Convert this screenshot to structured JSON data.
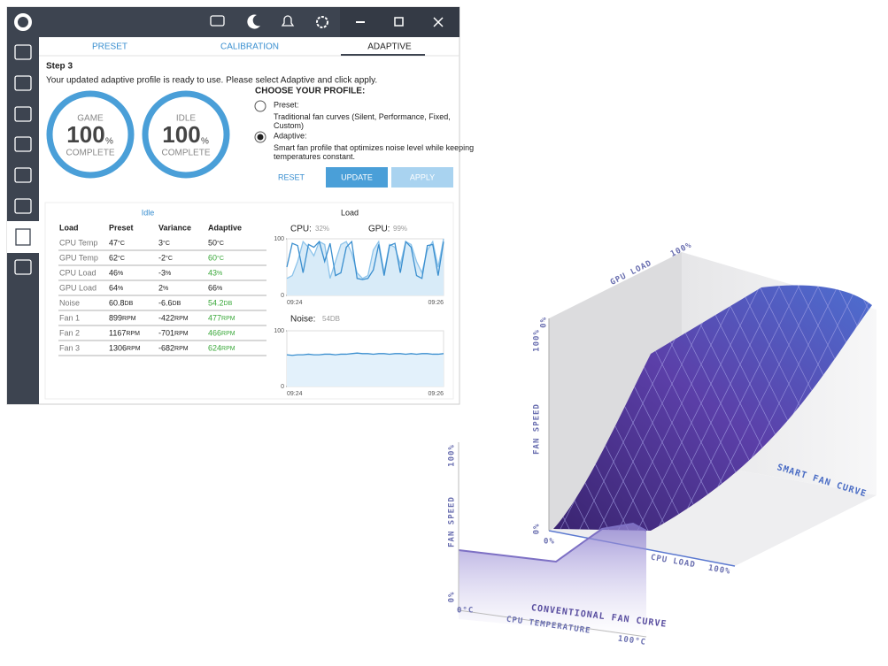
{
  "app": {
    "tabs": [
      "PRESET",
      "CALIBRATION",
      "ADAPTIVE"
    ],
    "step": "Step 3",
    "message": "Your updated adaptive profile is ready to use. Please select Adaptive and click apply.",
    "rings": [
      {
        "label": "GAME",
        "value": "100",
        "unit": "%",
        "status": "COMPLETE"
      },
      {
        "label": "IDLE",
        "value": "100",
        "unit": "%",
        "status": "COMPLETE"
      }
    ],
    "profile": {
      "heading": "CHOOSE YOUR PROFILE:",
      "options": [
        {
          "name": "Preset:",
          "description": "Traditional fan curves (Silent, Performance, Fixed, Custom)",
          "selected": false
        },
        {
          "name": "Adaptive:",
          "description": "Smart fan profile that optimizes noise level while keeping temperatures constant.",
          "selected": true
        }
      ],
      "buttons": [
        "RESET",
        "UPDATE",
        "APPLY"
      ]
    },
    "idle_heading": "Idle",
    "load_heading": "Load",
    "table": {
      "header": [
        "Load",
        "Preset",
        "Variance",
        "Adaptive"
      ],
      "rows": [
        {
          "label": "CPU Temp",
          "cells": [
            {
              "num": "47",
              "unit": "°C"
            },
            {
              "num": "3",
              "unit": "°C"
            },
            {
              "num": "50",
              "unit": "°C"
            }
          ],
          "adaptive_highlight": false
        },
        {
          "label": "GPU Temp",
          "cells": [
            {
              "num": "62",
              "unit": "°C"
            },
            {
              "num": "-2",
              "unit": "°C"
            },
            {
              "num": "60",
              "unit": "°C"
            }
          ],
          "adaptive_highlight": true
        },
        {
          "label": "CPU Load",
          "cells": [
            {
              "num": "46",
              "unit": "%"
            },
            {
              "num": "-3",
              "unit": "%"
            },
            {
              "num": "43",
              "unit": "%"
            }
          ],
          "adaptive_highlight": true
        },
        {
          "label": "GPU Load",
          "cells": [
            {
              "num": "64",
              "unit": "%"
            },
            {
              "num": "2",
              "unit": "%"
            },
            {
              "num": "66",
              "unit": "%"
            }
          ],
          "adaptive_highlight": false
        },
        {
          "label": "Noise",
          "cells": [
            {
              "num": "60.8",
              "unit": "DB"
            },
            {
              "num": "-6.6",
              "unit": "DB"
            },
            {
              "num": "54.2",
              "unit": "DB"
            }
          ],
          "adaptive_highlight": true
        },
        {
          "label": "Fan 1",
          "cells": [
            {
              "num": "899",
              "unit": "RPM"
            },
            {
              "num": "-422",
              "unit": "RPM"
            },
            {
              "num": "477",
              "unit": "RPM"
            }
          ],
          "adaptive_highlight": true
        },
        {
          "label": "Fan 2",
          "cells": [
            {
              "num": "1167",
              "unit": "RPM"
            },
            {
              "num": "-701",
              "unit": "RPM"
            },
            {
              "num": "466",
              "unit": "RPM"
            }
          ],
          "adaptive_highlight": true
        },
        {
          "label": "Fan 3",
          "cells": [
            {
              "num": "1306",
              "unit": "RPM"
            },
            {
              "num": "-682",
              "unit": "RPM"
            },
            {
              "num": "624",
              "unit": "RPM"
            }
          ],
          "adaptive_highlight": true
        }
      ]
    },
    "usage_chart": {
      "cpu_label": "CPU:",
      "cpu_value": "32%",
      "gpu_label": "GPU:",
      "gpu_value": "99%",
      "ylim": [
        0,
        100
      ],
      "yticks": [
        0,
        100
      ],
      "xticks": [
        "09:24",
        "09:26"
      ],
      "cpu": [
        50,
        92,
        88,
        40,
        90,
        85,
        95,
        60,
        92,
        35,
        40,
        85,
        95,
        30,
        28,
        30,
        45,
        90,
        35,
        88,
        92,
        40,
        95,
        85,
        35,
        30,
        88,
        90,
        35,
        95
      ],
      "gpu": [
        30,
        35,
        60,
        95,
        85,
        70,
        95,
        90,
        30,
        60,
        90,
        95,
        75,
        40,
        30,
        35,
        80,
        95,
        40,
        90,
        85,
        55,
        95,
        90,
        60,
        40,
        80,
        95,
        50,
        100
      ]
    },
    "noise_chart": {
      "label": "Noise:",
      "value": "54DB",
      "ylim": [
        0,
        100
      ],
      "yticks": [
        0,
        100
      ],
      "xticks": [
        "09:24",
        "09:26"
      ],
      "values": [
        57,
        56,
        57,
        57,
        58,
        57,
        57,
        58,
        58,
        57,
        58,
        58,
        59,
        60,
        59,
        59,
        58,
        59,
        59,
        58,
        59,
        59,
        58,
        59,
        58,
        59,
        59,
        58,
        58,
        59
      ]
    }
  },
  "graphic": {
    "gpu_load": "GPU LOAD",
    "gpu_max": "100%",
    "gpu_min": "0%",
    "fan_speed_back": "FAN SPEED",
    "fan_back_max": "100%",
    "fan_back_min": "0%",
    "smart_curve": "SMART FAN CURVE",
    "cpu_load": "CPU LOAD",
    "cpu_load_max": "100%",
    "fan_speed_front": "FAN SPEED",
    "fan_front_max": "100%",
    "fan_front_min": "0%",
    "temp_min": "0°C",
    "conventional_curve": "CONVENTIONAL FAN CURVE",
    "cpu_temperature": "CPU TEMPERATURE",
    "temp_max": "100°C"
  }
}
